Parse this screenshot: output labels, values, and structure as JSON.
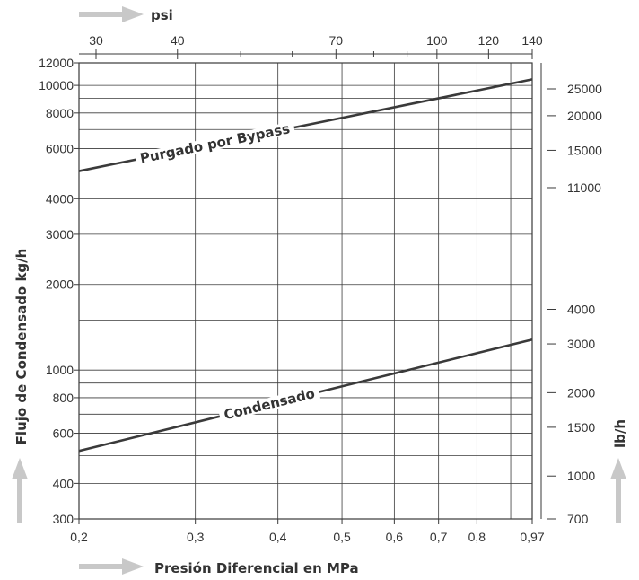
{
  "chart_data": {
    "type": "line",
    "x_scale": "log",
    "y_scale": "log",
    "grid": true,
    "xlabel": "Presión Diferencial en MPa",
    "ylabel": "Flujo de Condensado kg/h",
    "x_secondary_label": "psi",
    "y_secondary_label": "lb/h",
    "xlim": [
      0.2,
      0.97
    ],
    "ylim": [
      300,
      12000
    ],
    "x_ticks": [
      {
        "value": 0.2,
        "label": "0,2"
      },
      {
        "value": 0.3,
        "label": "0,3"
      },
      {
        "value": 0.4,
        "label": "0,4"
      },
      {
        "value": 0.5,
        "label": "0,5"
      },
      {
        "value": 0.6,
        "label": "0,6"
      },
      {
        "value": 0.7,
        "label": "0,7"
      },
      {
        "value": 0.8,
        "label": "0,8"
      },
      {
        "value": 0.97,
        "label": "0,97"
      }
    ],
    "x_extra_gridlines": [
      0.9
    ],
    "y_ticks": [
      {
        "value": 300,
        "label": "300"
      },
      {
        "value": 400,
        "label": "400"
      },
      {
        "value": 600,
        "label": "600"
      },
      {
        "value": 800,
        "label": "800"
      },
      {
        "value": 1000,
        "label": "1000"
      },
      {
        "value": 2000,
        "label": "2000"
      },
      {
        "value": 3000,
        "label": "3000"
      },
      {
        "value": 4000,
        "label": "4000"
      },
      {
        "value": 6000,
        "label": "6000"
      },
      {
        "value": 8000,
        "label": "8000"
      },
      {
        "value": 10000,
        "label": "10000"
      },
      {
        "value": 12000,
        "label": "12000"
      }
    ],
    "y_extra_gridlines": [
      500,
      700,
      900,
      1500,
      5000,
      7000,
      9000
    ],
    "top_ticks": [
      {
        "value": 30,
        "label": "30"
      },
      {
        "value": 40,
        "label": "40"
      },
      {
        "value": 70,
        "label": "70"
      },
      {
        "value": 100,
        "label": "100"
      },
      {
        "value": 120,
        "label": "120"
      },
      {
        "value": 140,
        "label": "140"
      }
    ],
    "top_minor_ticks": [
      50,
      60,
      80,
      90
    ],
    "right_ticks": [
      {
        "value": 700,
        "label": "700"
      },
      {
        "value": 1000,
        "label": "1000"
      },
      {
        "value": 1500,
        "label": "1500"
      },
      {
        "value": 2000,
        "label": "2000"
      },
      {
        "value": 3000,
        "label": "3000"
      },
      {
        "value": 4000,
        "label": "4000"
      },
      {
        "value": 11000,
        "label": "11000"
      },
      {
        "value": 15000,
        "label": "15000"
      },
      {
        "value": 20000,
        "label": "20000"
      },
      {
        "value": 25000,
        "label": "25000"
      }
    ],
    "series": [
      {
        "name": "Purgado por Bypass",
        "x": [
          0.2,
          0.97
        ],
        "y": [
          5000,
          10500
        ]
      },
      {
        "name": "Condensado",
        "x": [
          0.2,
          0.97
        ],
        "y": [
          520,
          1280
        ]
      }
    ]
  },
  "colors": {
    "line": "#3a3a3a",
    "grid": "#3a3a3a",
    "arrow": "#c8c8c8",
    "text": "#333333",
    "background": "#ffffff"
  }
}
